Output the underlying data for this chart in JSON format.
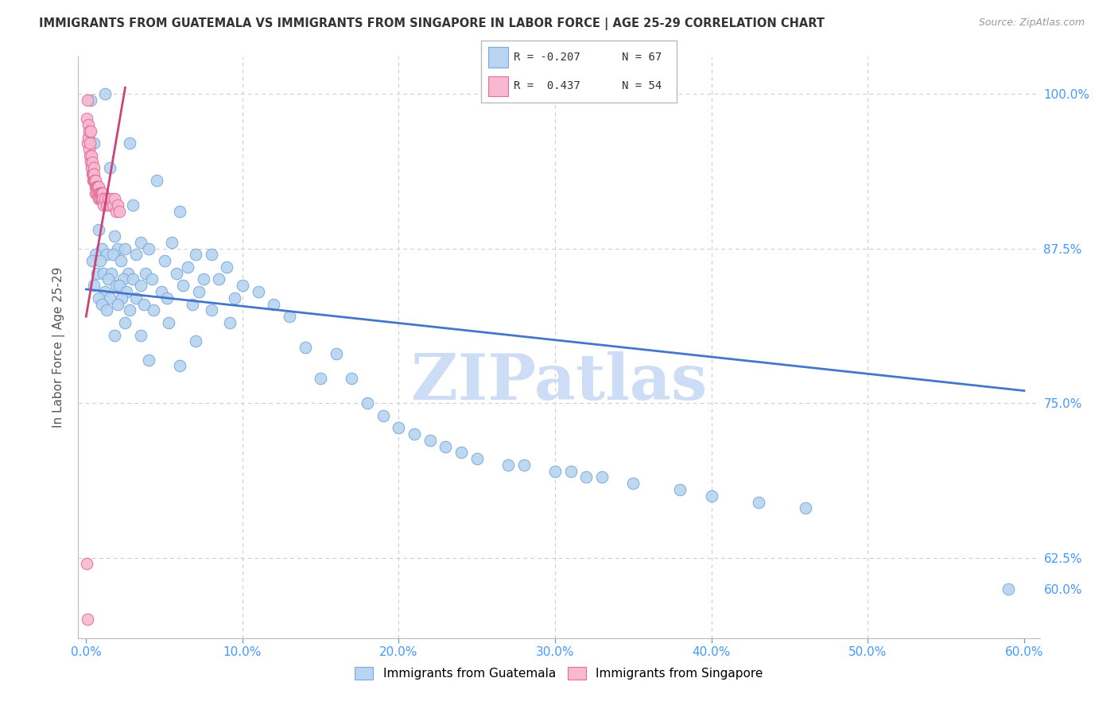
{
  "title": "IMMIGRANTS FROM GUATEMALA VS IMMIGRANTS FROM SINGAPORE IN LABOR FORCE | AGE 25-29 CORRELATION CHART",
  "source": "Source: ZipAtlas.com",
  "ylabel": "In Labor Force | Age 25-29",
  "blue_color": "#b8d4f0",
  "blue_edge": "#7aaad8",
  "blue_line": "#4477cc",
  "pink_color": "#f8b8d0",
  "pink_edge": "#e07098",
  "pink_line": "#cc4477",
  "watermark": "ZIPatlas",
  "watermark_color": "#ccddf5",
  "grid_color": "#cccccc",
  "title_color": "#333333",
  "axis_color": "#4499ff",
  "xlim": [
    -0.5,
    61.0
  ],
  "ylim": [
    56.0,
    103.0
  ],
  "blue_line_x0": 0.0,
  "blue_line_y0": 84.2,
  "blue_line_x1": 60.0,
  "blue_line_y1": 76.0,
  "pink_line_x0": 0.0,
  "pink_line_y0": 82.0,
  "pink_line_x1": 2.5,
  "pink_line_y1": 100.5,
  "guatemala_points": [
    [
      0.3,
      99.5
    ],
    [
      0.5,
      96.0
    ],
    [
      1.2,
      100.0
    ],
    [
      2.8,
      96.0
    ],
    [
      1.5,
      94.0
    ],
    [
      3.0,
      91.0
    ],
    [
      4.5,
      93.0
    ],
    [
      6.0,
      90.5
    ],
    [
      0.8,
      89.0
    ],
    [
      1.8,
      88.5
    ],
    [
      3.5,
      88.0
    ],
    [
      5.5,
      88.0
    ],
    [
      1.0,
      87.5
    ],
    [
      2.0,
      87.5
    ],
    [
      2.5,
      87.5
    ],
    [
      4.0,
      87.5
    ],
    [
      0.6,
      87.0
    ],
    [
      1.3,
      87.0
    ],
    [
      1.7,
      87.0
    ],
    [
      3.2,
      87.0
    ],
    [
      7.0,
      87.0
    ],
    [
      8.0,
      87.0
    ],
    [
      0.4,
      86.5
    ],
    [
      0.9,
      86.5
    ],
    [
      2.2,
      86.5
    ],
    [
      5.0,
      86.5
    ],
    [
      6.5,
      86.0
    ],
    [
      9.0,
      86.0
    ],
    [
      0.7,
      85.5
    ],
    [
      1.1,
      85.5
    ],
    [
      1.6,
      85.5
    ],
    [
      2.7,
      85.5
    ],
    [
      3.8,
      85.5
    ],
    [
      5.8,
      85.5
    ],
    [
      1.4,
      85.0
    ],
    [
      2.4,
      85.0
    ],
    [
      3.0,
      85.0
    ],
    [
      4.2,
      85.0
    ],
    [
      7.5,
      85.0
    ],
    [
      8.5,
      85.0
    ],
    [
      0.5,
      84.5
    ],
    [
      1.9,
      84.5
    ],
    [
      2.1,
      84.5
    ],
    [
      3.5,
      84.5
    ],
    [
      6.2,
      84.5
    ],
    [
      10.0,
      84.5
    ],
    [
      1.2,
      84.0
    ],
    [
      2.6,
      84.0
    ],
    [
      4.8,
      84.0
    ],
    [
      7.2,
      84.0
    ],
    [
      11.0,
      84.0
    ],
    [
      0.8,
      83.5
    ],
    [
      1.5,
      83.5
    ],
    [
      2.3,
      83.5
    ],
    [
      3.2,
      83.5
    ],
    [
      5.2,
      83.5
    ],
    [
      9.5,
      83.5
    ],
    [
      1.0,
      83.0
    ],
    [
      2.0,
      83.0
    ],
    [
      3.7,
      83.0
    ],
    [
      6.8,
      83.0
    ],
    [
      12.0,
      83.0
    ],
    [
      1.3,
      82.5
    ],
    [
      2.8,
      82.5
    ],
    [
      4.3,
      82.5
    ],
    [
      8.0,
      82.5
    ],
    [
      13.0,
      82.0
    ],
    [
      2.5,
      81.5
    ],
    [
      5.3,
      81.5
    ],
    [
      9.2,
      81.5
    ],
    [
      1.8,
      80.5
    ],
    [
      3.5,
      80.5
    ],
    [
      7.0,
      80.0
    ],
    [
      14.0,
      79.5
    ],
    [
      16.0,
      79.0
    ],
    [
      4.0,
      78.5
    ],
    [
      6.0,
      78.0
    ],
    [
      15.0,
      77.0
    ],
    [
      17.0,
      77.0
    ],
    [
      18.0,
      75.0
    ],
    [
      19.0,
      74.0
    ],
    [
      20.0,
      73.0
    ],
    [
      21.0,
      72.5
    ],
    [
      22.0,
      72.0
    ],
    [
      23.0,
      71.5
    ],
    [
      24.0,
      71.0
    ],
    [
      25.0,
      70.5
    ],
    [
      27.0,
      70.0
    ],
    [
      28.0,
      70.0
    ],
    [
      30.0,
      69.5
    ],
    [
      31.0,
      69.5
    ],
    [
      32.0,
      69.0
    ],
    [
      33.0,
      69.0
    ],
    [
      35.0,
      68.5
    ],
    [
      38.0,
      68.0
    ],
    [
      40.0,
      67.5
    ],
    [
      43.0,
      67.0
    ],
    [
      46.0,
      66.5
    ],
    [
      59.0,
      60.0
    ]
  ],
  "singapore_points": [
    [
      0.05,
      98.0
    ],
    [
      0.1,
      99.5
    ],
    [
      0.15,
      97.5
    ],
    [
      0.08,
      96.0
    ],
    [
      0.12,
      96.5
    ],
    [
      0.18,
      95.5
    ],
    [
      0.2,
      97.0
    ],
    [
      0.25,
      96.0
    ],
    [
      0.3,
      97.0
    ],
    [
      0.22,
      95.0
    ],
    [
      0.28,
      94.5
    ],
    [
      0.35,
      95.0
    ],
    [
      0.32,
      94.0
    ],
    [
      0.38,
      93.5
    ],
    [
      0.4,
      94.5
    ],
    [
      0.42,
      93.0
    ],
    [
      0.45,
      93.5
    ],
    [
      0.48,
      93.0
    ],
    [
      0.5,
      94.0
    ],
    [
      0.52,
      93.5
    ],
    [
      0.55,
      93.0
    ],
    [
      0.58,
      92.5
    ],
    [
      0.6,
      93.0
    ],
    [
      0.62,
      92.0
    ],
    [
      0.65,
      92.5
    ],
    [
      0.68,
      92.0
    ],
    [
      0.7,
      92.5
    ],
    [
      0.72,
      92.0
    ],
    [
      0.75,
      92.5
    ],
    [
      0.78,
      92.0
    ],
    [
      0.8,
      92.5
    ],
    [
      0.82,
      91.5
    ],
    [
      0.85,
      92.0
    ],
    [
      0.88,
      91.5
    ],
    [
      0.9,
      92.0
    ],
    [
      0.92,
      91.5
    ],
    [
      0.95,
      92.0
    ],
    [
      0.98,
      91.5
    ],
    [
      1.0,
      92.0
    ],
    [
      1.02,
      91.5
    ],
    [
      1.05,
      92.0
    ],
    [
      1.08,
      91.5
    ],
    [
      1.1,
      91.0
    ],
    [
      1.2,
      91.5
    ],
    [
      1.3,
      91.0
    ],
    [
      1.4,
      91.5
    ],
    [
      1.5,
      91.0
    ],
    [
      1.6,
      91.5
    ],
    [
      1.7,
      91.0
    ],
    [
      1.8,
      91.5
    ],
    [
      1.9,
      90.5
    ],
    [
      2.0,
      91.0
    ],
    [
      2.1,
      90.5
    ],
    [
      0.05,
      62.0
    ],
    [
      0.1,
      57.5
    ]
  ]
}
